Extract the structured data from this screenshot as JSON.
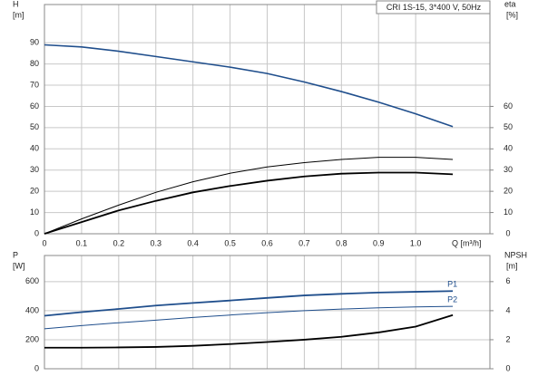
{
  "chart_data": [
    {
      "type": "line",
      "title": "CRI 1S-15, 3*400 V, 50Hz",
      "ylabel": "H",
      "yunit": "[m]",
      "y2label": "eta",
      "y2unit": "[%]",
      "xlabel": "Q [m³/h]",
      "x": [
        0,
        0.1,
        0.2,
        0.3,
        0.4,
        0.5,
        0.6,
        0.7,
        0.8,
        0.9,
        1.0,
        1.1
      ],
      "xlim": [
        0,
        1.2
      ],
      "xticks": [
        0,
        0.1,
        0.2,
        0.3,
        0.4,
        0.5,
        0.6,
        0.7,
        0.8,
        0.9,
        {
          "value": 1.0,
          "label": "1.0"
        }
      ],
      "ylim": [
        0,
        108
      ],
      "yticks": [
        0,
        10,
        20,
        30,
        40,
        50,
        60,
        70,
        80,
        90
      ],
      "y2lim": [
        0,
        108
      ],
      "y2ticks": [
        0,
        10,
        20,
        30,
        40,
        50,
        60
      ],
      "grid": true,
      "series": [
        {
          "color": "#1f4e8c",
          "width": 1.6,
          "values": [
            89,
            88,
            86,
            83.5,
            81,
            78.5,
            75.5,
            71.5,
            67,
            62,
            56.5,
            50.5
          ]
        },
        {
          "color": "#000000",
          "width": 1,
          "axis": "y2",
          "values": [
            0,
            7,
            13.5,
            19.5,
            24.5,
            28.5,
            31.5,
            33.5,
            35,
            36,
            36,
            35
          ]
        },
        {
          "color": "#000000",
          "width": 1.8,
          "axis": "y2",
          "values": [
            0,
            5.5,
            11,
            15.5,
            19.5,
            22.5,
            25,
            27,
            28.3,
            28.8,
            28.8,
            28
          ]
        }
      ]
    },
    {
      "type": "line",
      "ylabel": "P",
      "yunit": "[W]",
      "y2label": "NPSH",
      "y2unit": "[m]",
      "x": [
        0,
        0.1,
        0.2,
        0.3,
        0.4,
        0.5,
        0.6,
        0.7,
        0.8,
        0.9,
        1.0,
        1.1
      ],
      "xlim": [
        0,
        1.2
      ],
      "xticks": [
        0,
        0.1,
        0.2,
        0.3,
        0.4,
        0.5,
        0.6,
        0.7,
        0.8,
        0.9,
        1.0
      ],
      "ylim": [
        0,
        780
      ],
      "yticks": [
        0,
        200,
        400,
        600
      ],
      "y2lim": [
        0,
        7.8
      ],
      "y2ticks": [
        0,
        2,
        4,
        6
      ],
      "grid": true,
      "series": [
        {
          "name": "P1",
          "color": "#1f4e8c",
          "width": 1.8,
          "values": [
            365,
            390,
            412,
            435,
            453,
            470,
            488,
            505,
            516,
            525,
            530,
            535
          ]
        },
        {
          "name": "P2",
          "color": "#1f4e8c",
          "width": 1,
          "values": [
            275,
            297,
            317,
            335,
            353,
            370,
            386,
            400,
            411,
            420,
            426,
            430
          ]
        },
        {
          "color": "#000000",
          "width": 1.8,
          "axis": "y2",
          "values": [
            1.45,
            1.45,
            1.47,
            1.5,
            1.58,
            1.7,
            1.84,
            2.0,
            2.2,
            2.5,
            2.9,
            3.7
          ]
        }
      ]
    }
  ]
}
